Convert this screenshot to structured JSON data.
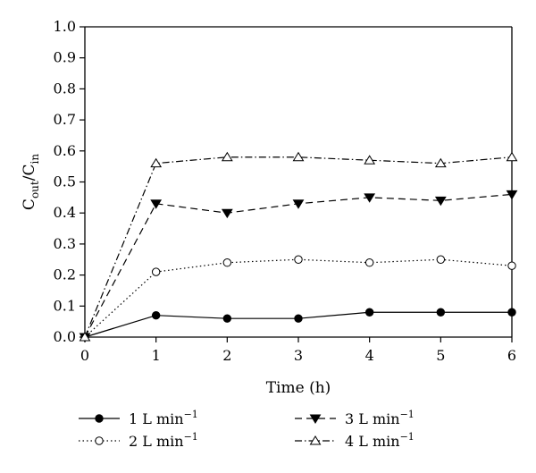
{
  "chart_data": {
    "type": "line",
    "x": [
      0,
      1,
      2,
      3,
      4,
      5,
      6
    ],
    "xlabel": "Time (h)",
    "ylabel": {
      "main": "C",
      "sub1": "out",
      "sep": "/C",
      "sub2": "in"
    },
    "xlim": [
      0,
      6
    ],
    "ylim": [
      0,
      1.0
    ],
    "xticks": [
      "0",
      "1",
      "2",
      "3",
      "4",
      "5",
      "6"
    ],
    "yticks": [
      "0.0",
      "0.1",
      "0.2",
      "0.3",
      "0.4",
      "0.5",
      "0.6",
      "0.7",
      "0.8",
      "0.9",
      "1.0"
    ],
    "grid": false,
    "legend_position": "bottom",
    "series": [
      {
        "name": "1 L min",
        "sup": "−1",
        "values": [
          0.0,
          0.07,
          0.06,
          0.06,
          0.08,
          0.08,
          0.08
        ],
        "line": "solid",
        "marker": "filled-circle"
      },
      {
        "name": "2 L min",
        "sup": "−1",
        "values": [
          0.0,
          0.21,
          0.24,
          0.25,
          0.24,
          0.25,
          0.23
        ],
        "line": "dotted",
        "marker": "open-circle"
      },
      {
        "name": "3 L min",
        "sup": "−1",
        "values": [
          0.0,
          0.43,
          0.4,
          0.43,
          0.45,
          0.44,
          0.46
        ],
        "line": "dashed",
        "marker": "filled-triangle-down"
      },
      {
        "name": "4 L min",
        "sup": "−1",
        "values": [
          0.0,
          0.56,
          0.58,
          0.58,
          0.57,
          0.56,
          0.58
        ],
        "line": "dash-dot",
        "marker": "open-triangle-up"
      }
    ]
  }
}
